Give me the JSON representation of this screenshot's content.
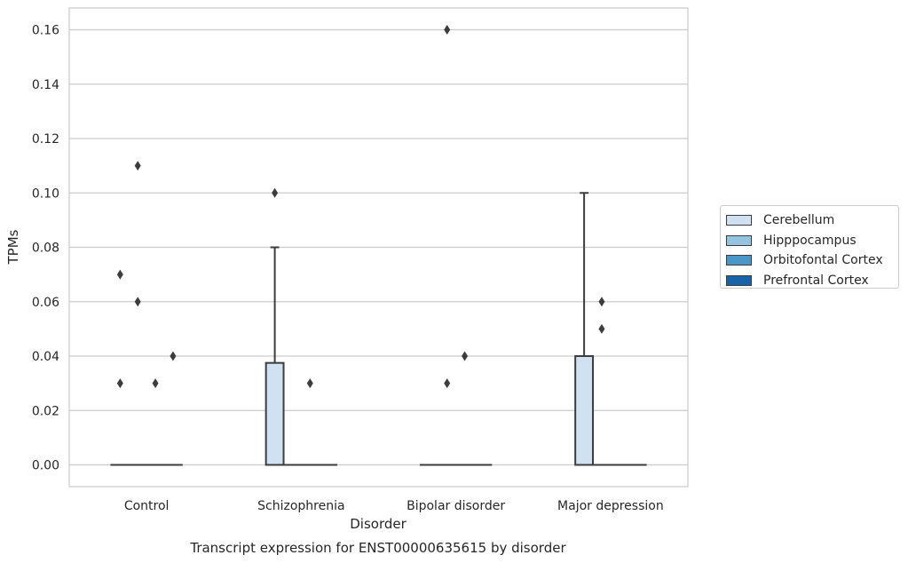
{
  "chart_data": {
    "type": "box",
    "title": "Transcript expression for ENST00000635615 by disorder",
    "xlabel": "Disorder",
    "ylabel": "TPMs",
    "ylim": [
      -0.008,
      0.168
    ],
    "yticks": [
      "0.00",
      "0.02",
      "0.04",
      "0.06",
      "0.08",
      "0.10",
      "0.12",
      "0.14",
      "0.16"
    ],
    "grid": true,
    "legend_position": "right",
    "categories": [
      "Control",
      "Schizophrenia",
      "Bipolar disorder",
      "Major depression"
    ],
    "series": [
      {
        "name": "Cerebellum",
        "color": "#d0e1f2",
        "boxes": [
          {
            "q1": 0,
            "median": 0,
            "q3": 0,
            "whisker_low": 0,
            "whisker_high": 0,
            "outliers": [
              0.03,
              0.07
            ]
          },
          {
            "q1": 0,
            "median": 0,
            "q3": 0.0375,
            "whisker_low": 0,
            "whisker_high": 0.08,
            "outliers": [
              0.1
            ]
          },
          {
            "q1": 0,
            "median": 0,
            "q3": 0,
            "whisker_low": 0,
            "whisker_high": 0,
            "outliers": []
          },
          {
            "q1": 0,
            "median": 0,
            "q3": 0.04,
            "whisker_low": 0,
            "whisker_high": 0.1,
            "outliers": []
          }
        ]
      },
      {
        "name": "Hipppocampus",
        "color": "#94c4df",
        "boxes": [
          {
            "q1": 0,
            "median": 0,
            "q3": 0,
            "whisker_low": 0,
            "whisker_high": 0,
            "outliers": [
              0.11,
              0.06
            ]
          },
          {
            "q1": 0,
            "median": 0,
            "q3": 0,
            "whisker_low": 0,
            "whisker_high": 0,
            "outliers": []
          },
          {
            "q1": 0,
            "median": 0,
            "q3": 0,
            "whisker_low": 0,
            "whisker_high": 0,
            "outliers": [
              0.16,
              0.03
            ]
          },
          {
            "q1": 0,
            "median": 0,
            "q3": 0,
            "whisker_low": 0,
            "whisker_high": 0,
            "outliers": [
              0.06,
              0.05
            ]
          }
        ]
      },
      {
        "name": "Orbitofontal Cortex",
        "color": "#4a98c9",
        "boxes": [
          {
            "q1": 0,
            "median": 0,
            "q3": 0,
            "whisker_low": 0,
            "whisker_high": 0,
            "outliers": [
              0.03
            ]
          },
          {
            "q1": 0,
            "median": 0,
            "q3": 0,
            "whisker_low": 0,
            "whisker_high": 0,
            "outliers": [
              0.03
            ]
          },
          {
            "q1": 0,
            "median": 0,
            "q3": 0,
            "whisker_low": 0,
            "whisker_high": 0,
            "outliers": [
              0.04
            ]
          },
          {
            "q1": 0,
            "median": 0,
            "q3": 0,
            "whisker_low": 0,
            "whisker_high": 0,
            "outliers": []
          }
        ]
      },
      {
        "name": "Prefrontal Cortex",
        "color": "#1764ab",
        "boxes": [
          {
            "q1": 0,
            "median": 0,
            "q3": 0,
            "whisker_low": 0,
            "whisker_high": 0,
            "outliers": [
              0.04
            ]
          },
          {
            "q1": 0,
            "median": 0,
            "q3": 0,
            "whisker_low": 0,
            "whisker_high": 0,
            "outliers": []
          },
          {
            "q1": 0,
            "median": 0,
            "q3": 0,
            "whisker_low": 0,
            "whisker_high": 0,
            "outliers": []
          },
          {
            "q1": 0,
            "median": 0,
            "q3": 0,
            "whisker_low": 0,
            "whisker_high": 0,
            "outliers": []
          }
        ]
      }
    ]
  }
}
